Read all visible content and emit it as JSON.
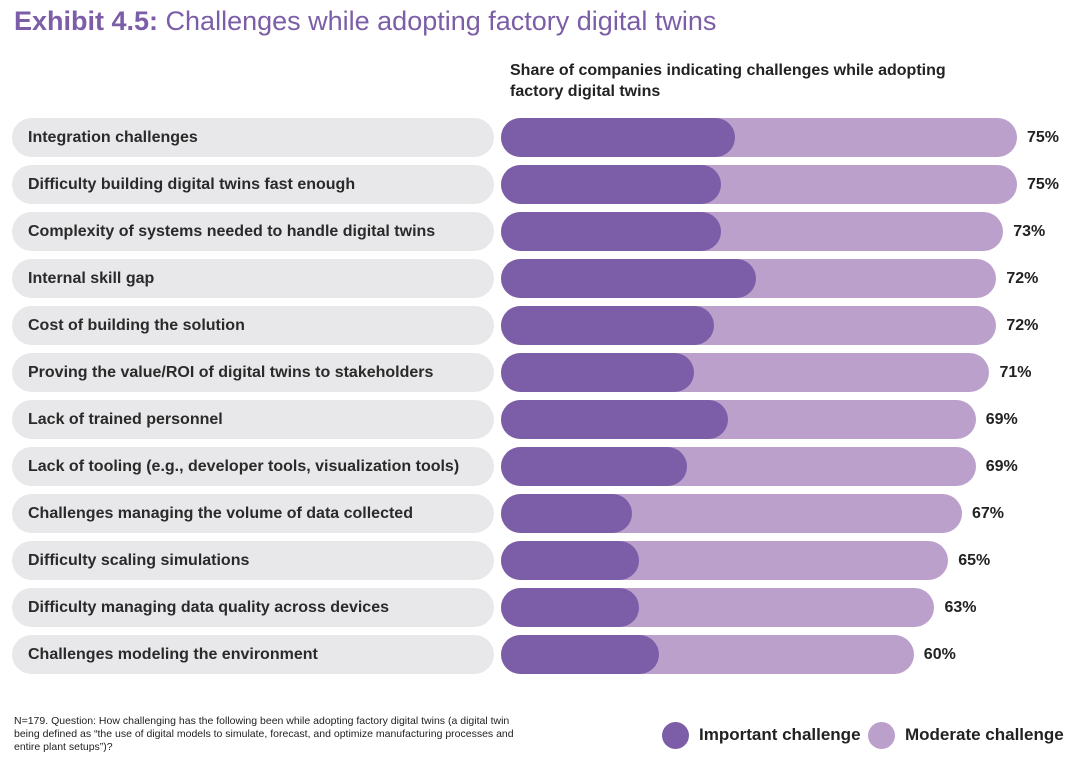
{
  "header": {
    "title_bold": "Exhibit 4.5:",
    "title_rest": "Challenges while adopting factory digital twins"
  },
  "chart_data": {
    "type": "bar",
    "orientation": "horizontal",
    "stacked": true,
    "title": "Share of companies indicating challenges while adopting factory digital twins",
    "categories": [
      "Integration challenges",
      "Difficulty building digital twins fast enough",
      "Complexity of systems needed to handle digital twins",
      "Internal skill gap",
      "Cost of building the solution",
      "Proving the value/ROI of digital twins to stakeholders",
      "Lack of trained personnel",
      "Lack of tooling (e.g., developer tools, visualization tools)",
      "Challenges managing the volume of data collected",
      "Difficulty scaling simulations",
      "Difficulty managing data quality across devices",
      "Challenges modeling the environment"
    ],
    "totals": [
      75,
      75,
      73,
      72,
      72,
      71,
      69,
      69,
      67,
      65,
      63,
      60
    ],
    "total_labels": [
      "75%",
      "75%",
      "73%",
      "72%",
      "72%",
      "71%",
      "69%",
      "69%",
      "67%",
      "65%",
      "63%",
      "60%"
    ],
    "series": [
      {
        "name": "Important challenge",
        "color": "#7b5ea7",
        "values": [
          34,
          32,
          32,
          37,
          31,
          28,
          33,
          27,
          19,
          20,
          20,
          23
        ]
      },
      {
        "name": "Moderate challenge",
        "color": "#bba0cc",
        "values": [
          41,
          43,
          41,
          35,
          41,
          43,
          36,
          42,
          48,
          45,
          43,
          37
        ]
      }
    ],
    "xlim": [
      0,
      75
    ]
  },
  "footnote": "N=179. Question: How challenging has the following been while adopting factory digital twins (a digital twin being defined as “the use of digital models to simulate, forecast, and optimize manufacturing processes and entire plant setups”)?",
  "colors": {
    "title": "#7b5ea7",
    "pill": "#e8e8ea"
  }
}
